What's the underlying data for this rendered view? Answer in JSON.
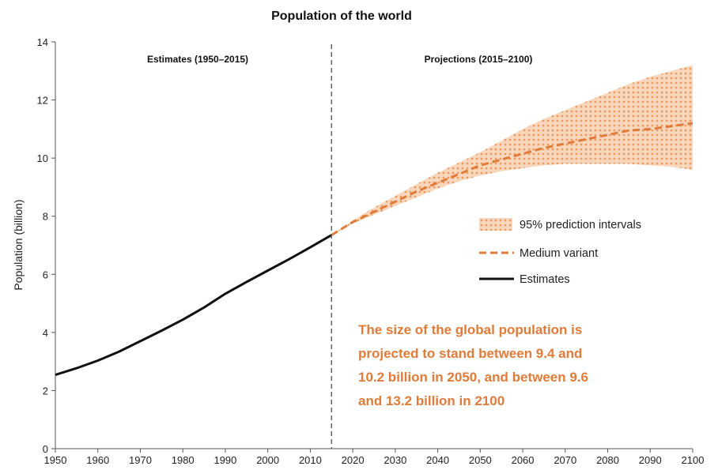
{
  "chart_data": {
    "type": "line",
    "title": "Population of the world",
    "ylabel": "Population (billion)",
    "xlabel": "",
    "xlim": [
      1950,
      2100
    ],
    "ylim": [
      0,
      14
    ],
    "x_ticks": [
      1950,
      1960,
      1970,
      1980,
      1990,
      2000,
      2010,
      2020,
      2030,
      2040,
      2050,
      2060,
      2070,
      2080,
      2090,
      2100
    ],
    "y_ticks": [
      0,
      2,
      4,
      6,
      8,
      10,
      12,
      14
    ],
    "grid": false,
    "divider_year": 2015,
    "section_labels": {
      "estimates": "Estimates (1950–2015)",
      "projections": "Projections (2015–2100)"
    },
    "series": [
      {
        "name": "Estimates",
        "style": "solid",
        "color": "#111111",
        "x": [
          1950,
          1955,
          1960,
          1965,
          1970,
          1975,
          1980,
          1985,
          1990,
          1995,
          2000,
          2005,
          2010,
          2015
        ],
        "y": [
          2.54,
          2.77,
          3.03,
          3.34,
          3.7,
          4.06,
          4.44,
          4.86,
          5.33,
          5.74,
          6.13,
          6.52,
          6.93,
          7.35
        ]
      },
      {
        "name": "Medium variant",
        "style": "dashed",
        "color": "#e07b39",
        "x": [
          2015,
          2020,
          2025,
          2030,
          2035,
          2040,
          2045,
          2050,
          2055,
          2060,
          2065,
          2070,
          2075,
          2080,
          2085,
          2090,
          2095,
          2100
        ],
        "y": [
          7.35,
          7.8,
          8.15,
          8.5,
          8.85,
          9.15,
          9.45,
          9.75,
          9.95,
          10.15,
          10.35,
          10.5,
          10.65,
          10.8,
          10.95,
          11.0,
          11.1,
          11.2
        ]
      },
      {
        "name": "95% prediction intervals",
        "type": "band",
        "color": "#f3b98f",
        "x": [
          2015,
          2020,
          2025,
          2030,
          2035,
          2040,
          2045,
          2050,
          2055,
          2060,
          2065,
          2070,
          2075,
          2080,
          2085,
          2090,
          2095,
          2100
        ],
        "lower": [
          7.35,
          7.75,
          8.05,
          8.35,
          8.65,
          8.95,
          9.2,
          9.4,
          9.55,
          9.65,
          9.75,
          9.8,
          9.8,
          9.8,
          9.8,
          9.75,
          9.7,
          9.6
        ],
        "upper": [
          7.35,
          7.85,
          8.3,
          8.7,
          9.1,
          9.5,
          9.85,
          10.2,
          10.6,
          11.0,
          11.35,
          11.65,
          11.95,
          12.25,
          12.55,
          12.8,
          13.0,
          13.2
        ]
      }
    ],
    "legend": {
      "placement": "right",
      "entries": [
        "95% prediction intervals",
        "Medium variant",
        "Estimates"
      ]
    },
    "annotation": [
      "The size of the global population is",
      "projected to stand between 9.4 and",
      "10.2 billion in 2050, and between 9.6",
      "and 13.2 billion in 2100"
    ]
  }
}
